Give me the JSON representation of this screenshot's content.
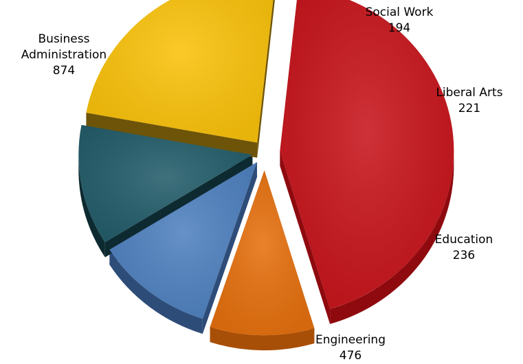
{
  "chart_data": {
    "type": "pie",
    "style": "3d-exploded",
    "title": "",
    "slices": [
      {
        "label": "Business Administration",
        "label_lines": [
          "Business",
          "Administration"
        ],
        "value": 874,
        "color": "#C8161D",
        "side_color": "#8E0A0F"
      },
      {
        "label": "Social Work",
        "label_lines": [
          "Social Work"
        ],
        "value": 194,
        "color": "#E6710F",
        "side_color": "#A84F07"
      },
      {
        "label": "Liberal Arts",
        "label_lines": [
          "Liberal Arts"
        ],
        "value": 221,
        "color": "#5082C0",
        "side_color": "#2E4C78"
      },
      {
        "label": "Education",
        "label_lines": [
          "Education"
        ],
        "value": 236,
        "color": "#245E6B",
        "side_color": "#0E2A31"
      },
      {
        "label": "Engineering",
        "label_lines": [
          "Engineering"
        ],
        "value": 476,
        "color": "#FBC30C",
        "side_color": "#6E5408"
      }
    ]
  }
}
